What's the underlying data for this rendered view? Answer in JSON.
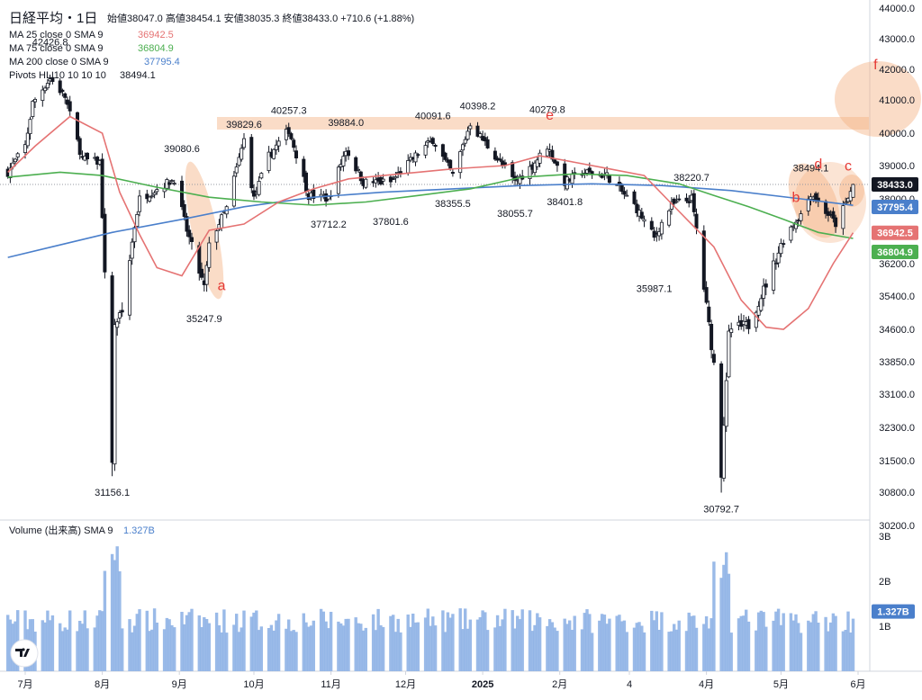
{
  "header": {
    "title": "日経平均・1日",
    "ohlc": "始値38047.0  高値38454.1  安値38035.3  終値38433.0  +710.6 (+1.88%)"
  },
  "legend": [
    {
      "label": "MA 25 close 0 SMA 9",
      "value": "36942.5",
      "color": "#e57373"
    },
    {
      "label": "MA 75 close 0 SMA 9",
      "value": "36804.9",
      "color": "#4caf50"
    },
    {
      "label": "MA 200 close 0 SMA 9",
      "value": "37795.4",
      "color": "#4a7fcb"
    },
    {
      "label": "Pivots HL  10 10 10 10",
      "value": "38494.1",
      "color": "#131722"
    }
  ],
  "price_badges": [
    {
      "text": "38433.0",
      "bg": "#131722",
      "fg": "#ffffff",
      "price": 38433.0
    },
    {
      "text": "37795.4",
      "bg": "#4a7fcb",
      "fg": "#ffffff",
      "price": 37795.4
    },
    {
      "text": "36942.5",
      "bg": "#e57373",
      "fg": "#ffffff",
      "price": 36942.5
    },
    {
      "text": "36804.9",
      "bg": "#4caf50",
      "fg": "#ffffff",
      "price": 36804.9
    }
  ],
  "volume": {
    "title": "Volume (出来高)  SMA 9",
    "value": "1.327B",
    "badge": "1.327B",
    "y_ticks": [
      "3B",
      "2B",
      "1B"
    ],
    "y_tick_values": [
      3,
      2,
      1
    ]
  },
  "annotations": [
    {
      "label": "a",
      "date": "2024-09-18",
      "price": 35550
    },
    {
      "label": "b",
      "date": "2025-05-07",
      "price": 37900
    },
    {
      "label": "c",
      "date": "2025-05-28",
      "price": 38850
    },
    {
      "label": "d",
      "date": "2025-05-16",
      "price": 38900
    },
    {
      "label": "e",
      "date": "2025-01-28",
      "price": 40400
    },
    {
      "label": "f",
      "date": "2025-06-08",
      "price": 42000
    }
  ],
  "chart_data": {
    "type": "candlestick",
    "x_ticks": [
      {
        "label": "7月",
        "date": "2024-07-01"
      },
      {
        "label": "8月",
        "date": "2024-08-01"
      },
      {
        "label": "9月",
        "date": "2024-09-01"
      },
      {
        "label": "10月",
        "date": "2024-10-01"
      },
      {
        "label": "11月",
        "date": "2024-11-01"
      },
      {
        "label": "12月",
        "date": "2024-12-01"
      },
      {
        "label": "2025",
        "date": "2025-01-01"
      },
      {
        "label": "2月",
        "date": "2025-02-01"
      },
      {
        "label": "4",
        "date": "2025-03-01"
      },
      {
        "label": "4月",
        "date": "2025-04-01"
      },
      {
        "label": "5月",
        "date": "2025-05-01"
      },
      {
        "label": "6月",
        "date": "2025-06-01"
      }
    ],
    "y_ticks": [
      44000,
      43000,
      42000,
      41000,
      40000,
      39000,
      38000,
      37000,
      36200,
      35400,
      34600,
      33850,
      33100,
      32300,
      31500,
      30800,
      30200
    ],
    "pivots": [
      {
        "label": "42426.8",
        "date": "2024-07-11",
        "price": 42426.8,
        "pos": "high"
      },
      {
        "label": "31156.1",
        "date": "2024-08-05",
        "price": 31156.1,
        "pos": "low"
      },
      {
        "label": "39080.6",
        "date": "2024-09-02",
        "price": 39080.6,
        "pos": "high"
      },
      {
        "label": "35247.9",
        "date": "2024-09-11",
        "price": 35247.9,
        "pos": "low"
      },
      {
        "label": "39829.6",
        "date": "2024-09-27",
        "price": 39829.6,
        "pos": "high"
      },
      {
        "label": "40257.3",
        "date": "2024-10-15",
        "price": 40257.3,
        "pos": "high"
      },
      {
        "label": "37712.2",
        "date": "2024-10-31",
        "price": 37712.2,
        "pos": "low"
      },
      {
        "label": "39884.0",
        "date": "2024-11-07",
        "price": 39884.0,
        "pos": "high"
      },
      {
        "label": "37801.6",
        "date": "2024-11-25",
        "price": 37801.6,
        "pos": "low"
      },
      {
        "label": "40091.6",
        "date": "2024-12-12",
        "price": 40091.6,
        "pos": "high"
      },
      {
        "label": "38355.5",
        "date": "2024-12-20",
        "price": 38355.5,
        "pos": "low"
      },
      {
        "label": "40398.2",
        "date": "2024-12-30",
        "price": 40398.2,
        "pos": "high"
      },
      {
        "label": "38055.7",
        "date": "2025-01-14",
        "price": 38055.7,
        "pos": "low"
      },
      {
        "label": "40279.8",
        "date": "2025-01-27",
        "price": 40279.8,
        "pos": "high"
      },
      {
        "label": "38401.8",
        "date": "2025-02-03",
        "price": 38401.8,
        "pos": "low"
      },
      {
        "label": "35987.1",
        "date": "2025-03-11",
        "price": 35987.1,
        "pos": "low"
      },
      {
        "label": "38220.7",
        "date": "2025-03-26",
        "price": 38220.7,
        "pos": "high"
      },
      {
        "label": "30792.7",
        "date": "2025-04-07",
        "price": 30792.7,
        "pos": "low"
      },
      {
        "label": "38494.1",
        "date": "2025-05-13",
        "price": 38494.1,
        "pos": "high"
      }
    ],
    "ohlc_last": {
      "open": 38047.0,
      "high": 38454.1,
      "low": 38035.3,
      "close": 38433.0,
      "change": 710.6,
      "change_pct": 1.88
    },
    "series": [
      {
        "name": "MA 25 close 0 SMA 9",
        "color": "#e57373",
        "last": 36942.5
      },
      {
        "name": "MA 75 close 0 SMA 9",
        "color": "#4caf50",
        "last": 36804.9
      },
      {
        "name": "MA 200 close 0 SMA 9",
        "color": "#4a7fcb",
        "last": 37795.4
      }
    ],
    "close_path": [
      [
        "2024-06-24",
        38800
      ],
      [
        "2024-07-01",
        39600
      ],
      [
        "2024-07-04",
        40900
      ],
      [
        "2024-07-11",
        41700
      ],
      [
        "2024-07-17",
        41100
      ],
      [
        "2024-07-24",
        39200
      ],
      [
        "2024-07-31",
        39100
      ],
      [
        "2024-08-02",
        35900
      ],
      [
        "2024-08-05",
        31460
      ],
      [
        "2024-08-06",
        34700
      ],
      [
        "2024-08-09",
        35000
      ],
      [
        "2024-08-16",
        38000
      ],
      [
        "2024-08-23",
        38300
      ],
      [
        "2024-08-30",
        38600
      ],
      [
        "2024-09-04",
        37000
      ],
      [
        "2024-09-11",
        35600
      ],
      [
        "2024-09-13",
        36600
      ],
      [
        "2024-09-20",
        37700
      ],
      [
        "2024-09-27",
        39800
      ],
      [
        "2024-10-01",
        38000
      ],
      [
        "2024-10-07",
        39300
      ],
      [
        "2024-10-15",
        40100
      ],
      [
        "2024-10-23",
        38100
      ],
      [
        "2024-10-31",
        38000
      ],
      [
        "2024-11-07",
        39500
      ],
      [
        "2024-11-14",
        38500
      ],
      [
        "2024-11-25",
        38500
      ],
      [
        "2024-12-05",
        39300
      ],
      [
        "2024-12-12",
        39800
      ],
      [
        "2024-12-20",
        38700
      ],
      [
        "2024-12-27",
        40300
      ],
      [
        "2025-01-06",
        39300
      ],
      [
        "2025-01-14",
        38500
      ],
      [
        "2025-01-21",
        39000
      ],
      [
        "2025-01-27",
        39600
      ],
      [
        "2025-02-03",
        38500
      ],
      [
        "2025-02-10",
        38800
      ],
      [
        "2025-02-20",
        38700
      ],
      [
        "2025-03-03",
        37800
      ],
      [
        "2025-03-11",
        36800
      ],
      [
        "2025-03-18",
        37800
      ],
      [
        "2025-03-26",
        38000
      ],
      [
        "2025-03-31",
        35600
      ],
      [
        "2025-04-04",
        33800
      ],
      [
        "2025-04-07",
        31100
      ],
      [
        "2025-04-10",
        34600
      ],
      [
        "2025-04-18",
        34700
      ],
      [
        "2025-04-25",
        35700
      ],
      [
        "2025-05-02",
        36800
      ],
      [
        "2025-05-09",
        37500
      ],
      [
        "2025-05-13",
        38180
      ],
      [
        "2025-05-20",
        37500
      ],
      [
        "2025-05-23",
        37200
      ],
      [
        "2025-05-28",
        38000
      ],
      [
        "2025-05-30",
        38433
      ]
    ],
    "ma25_path": [
      [
        "2024-06-24",
        38800
      ],
      [
        "2024-07-05",
        39600
      ],
      [
        "2024-07-19",
        40500
      ],
      [
        "2024-08-01",
        40000
      ],
      [
        "2024-08-08",
        38200
      ],
      [
        "2024-08-16",
        36900
      ],
      [
        "2024-08-23",
        36100
      ],
      [
        "2024-09-02",
        35900
      ],
      [
        "2024-09-13",
        37000
      ],
      [
        "2024-09-27",
        37200
      ],
      [
        "2024-10-11",
        37900
      ],
      [
        "2024-10-25",
        38300
      ],
      [
        "2024-11-08",
        38600
      ],
      [
        "2024-11-22",
        38700
      ],
      [
        "2024-12-06",
        38800
      ],
      [
        "2024-12-20",
        38900
      ],
      [
        "2025-01-10",
        39000
      ],
      [
        "2025-01-24",
        39300
      ],
      [
        "2025-02-07",
        39100
      ],
      [
        "2025-02-21",
        38900
      ],
      [
        "2025-03-07",
        38700
      ],
      [
        "2025-03-21",
        37600
      ],
      [
        "2025-04-04",
        36600
      ],
      [
        "2025-04-15",
        35300
      ],
      [
        "2025-04-25",
        34650
      ],
      [
        "2025-05-02",
        34600
      ],
      [
        "2025-05-12",
        35100
      ],
      [
        "2025-05-22",
        36200
      ],
      [
        "2025-05-30",
        36942.5
      ]
    ],
    "ma75_path": [
      [
        "2024-06-24",
        38650
      ],
      [
        "2024-07-15",
        38800
      ],
      [
        "2024-08-01",
        38700
      ],
      [
        "2024-08-23",
        38350
      ],
      [
        "2024-09-13",
        38050
      ],
      [
        "2024-10-04",
        37900
      ],
      [
        "2024-10-25",
        37800
      ],
      [
        "2024-11-15",
        37900
      ],
      [
        "2024-12-06",
        38100
      ],
      [
        "2024-12-27",
        38300
      ],
      [
        "2025-01-17",
        38650
      ],
      [
        "2025-02-07",
        38750
      ],
      [
        "2025-02-28",
        38700
      ],
      [
        "2025-03-21",
        38450
      ],
      [
        "2025-04-04",
        38100
      ],
      [
        "2025-04-18",
        37750
      ],
      [
        "2025-05-02",
        37350
      ],
      [
        "2025-05-16",
        36950
      ],
      [
        "2025-05-30",
        36804.9
      ]
    ],
    "ma200_path": [
      [
        "2024-06-24",
        36350
      ],
      [
        "2024-07-15",
        36650
      ],
      [
        "2024-08-05",
        36950
      ],
      [
        "2024-09-02",
        37350
      ],
      [
        "2024-09-27",
        37750
      ],
      [
        "2024-10-25",
        38050
      ],
      [
        "2024-11-22",
        38200
      ],
      [
        "2024-12-20",
        38300
      ],
      [
        "2025-01-17",
        38400
      ],
      [
        "2025-02-14",
        38450
      ],
      [
        "2025-03-14",
        38400
      ],
      [
        "2025-04-11",
        38250
      ],
      [
        "2025-05-09",
        38000
      ],
      [
        "2025-05-30",
        37795.4
      ]
    ],
    "legend_placement": "top-left"
  }
}
